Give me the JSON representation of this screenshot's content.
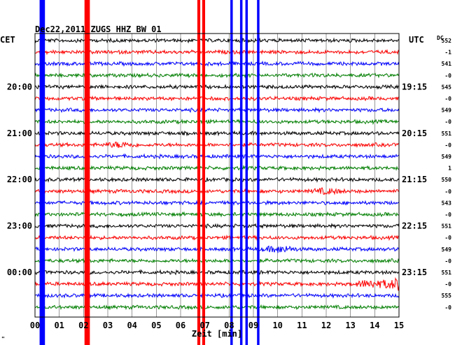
{
  "chart_data": {
    "type": "line",
    "title": "Dec22,2011  ZUGS HHZ BW 01",
    "xlabel": "Zeit [min]",
    "left_axis_title": "CET",
    "right_axis_title": "UTC",
    "dc_title": "DC",
    "footer_mark": "\"",
    "xlim": [
      0,
      15
    ],
    "x_ticks": [
      "00",
      "01",
      "02",
      "03",
      "04",
      "05",
      "06",
      "07",
      "08",
      "09",
      "10",
      "11",
      "12",
      "13",
      "14",
      "15"
    ],
    "grid": true,
    "trace_count": 24,
    "trace_colors": [
      "#000000",
      "#ff0000",
      "#0000ff",
      "#008000"
    ],
    "left_time_labels": [
      {
        "trace": 4,
        "text": "20:00"
      },
      {
        "trace": 8,
        "text": "21:00"
      },
      {
        "trace": 12,
        "text": "22:00"
      },
      {
        "trace": 16,
        "text": "23:00"
      },
      {
        "trace": 20,
        "text": "00:00"
      }
    ],
    "right_time_labels": [
      {
        "trace": 4,
        "text": "19:15"
      },
      {
        "trace": 8,
        "text": "20:15"
      },
      {
        "trace": 12,
        "text": "21:15"
      },
      {
        "trace": 16,
        "text": "22:15"
      },
      {
        "trace": 20,
        "text": "23:15"
      }
    ],
    "dc_values": [
      "552",
      "-1",
      "541",
      "-0",
      "545",
      "-0",
      "549",
      "-0",
      "551",
      "-0",
      "549",
      "1",
      "550",
      "-0",
      "543",
      "-0",
      "551",
      "-0",
      "549",
      "-0",
      "551",
      "-0",
      "555",
      "-0"
    ],
    "vertical_bursts": [
      {
        "x_min": 0.3,
        "color": "#0000ff",
        "width_min": 0.22
      },
      {
        "x_min": 2.15,
        "color": "#ff0000",
        "width_min": 0.22
      },
      {
        "x_min": 6.75,
        "color": "#ff0000",
        "width_min": 0.12
      },
      {
        "x_min": 6.95,
        "color": "#ff0000",
        "width_min": 0.12
      },
      {
        "x_min": 8.1,
        "color": "#0000ff",
        "width_min": 0.1
      },
      {
        "x_min": 8.5,
        "color": "#0000ff",
        "width_min": 0.1
      },
      {
        "x_min": 8.72,
        "color": "#0000ff",
        "width_min": 0.1
      },
      {
        "x_min": 9.2,
        "color": "#0000ff",
        "width_min": 0.1
      }
    ],
    "local_events": [
      {
        "trace": 21,
        "x_min": 13.8,
        "amplitude": 5
      },
      {
        "trace": 21,
        "x_min": 15.0,
        "amplitude": 8
      },
      {
        "trace": 18,
        "x_min": 10.1,
        "amplitude": 4
      },
      {
        "trace": 9,
        "x_min": 3.5,
        "amplitude": 3
      },
      {
        "trace": 13,
        "x_min": 12.0,
        "amplitude": 3
      }
    ]
  }
}
